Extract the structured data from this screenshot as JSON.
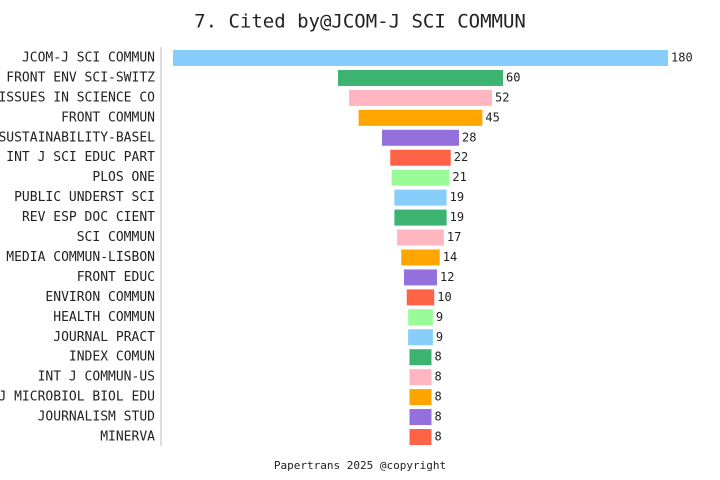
{
  "chart_data": {
    "type": "funnel-bar",
    "title": "7. Cited by@JCOM-J SCI COMMUN",
    "footer": "Papertrans 2025 @copyright",
    "categories": [
      "JCOM-J SCI COMMUN",
      "FRONT ENV SCI-SWITZ",
      "ISSUES IN SCIENCE CO",
      "FRONT COMMUN",
      "SUSTAINABILITY-BASEL",
      "INT J SCI EDUC PART",
      "PLOS ONE",
      "PUBLIC UNDERST SCI",
      "REV ESP DOC CIENT",
      "SCI COMMUN",
      "MEDIA COMMUN-LISBON",
      "FRONT EDUC",
      "ENVIRON COMMUN",
      "HEALTH COMMUN",
      "JOURNAL PRACT",
      "INDEX COMUN",
      "INT J COMMUN-US",
      "J MICROBIOL BIOL EDU",
      "JOURNALISM STUD",
      "MINERVA"
    ],
    "values": [
      180,
      60,
      52,
      45,
      28,
      22,
      21,
      19,
      19,
      17,
      14,
      12,
      10,
      9,
      9,
      8,
      8,
      8,
      8,
      8
    ],
    "colors": [
      "#87cefa",
      "#3cb371",
      "#ffb6c1",
      "#ffa500",
      "#9370db",
      "#ff6347",
      "#98fb98"
    ]
  }
}
